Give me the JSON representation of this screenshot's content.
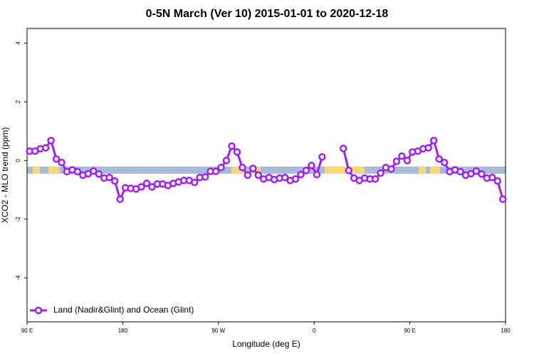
{
  "chart_data": {
    "type": "line",
    "title": "0-5N March (Ver 10)   2015-01-01 to 2020-12-18",
    "x_label": "Longitude (deg E)",
    "y_label": "XCO2 - MLO trend (ppm)",
    "xlim": [
      90,
      540
    ],
    "xticks": [
      {
        "value": 90,
        "label": "90 E"
      },
      180,
      {
        "value": 270,
        "label": "90 W"
      },
      {
        "value": 360,
        "label": "0"
      },
      {
        "value": 450,
        "label": "90 E"
      },
      {
        "value": 540,
        "label": "180"
      }
    ],
    "ylim": [
      -5.5,
      4.5
    ],
    "yticks": [
      4,
      2,
      0,
      -2,
      -4
    ],
    "legend": "bottom-left",
    "x": [
      92.5,
      97.5,
      102.5,
      107.5,
      112.5,
      117.5,
      122.5,
      127.5,
      132.5,
      137.5,
      142.5,
      147.5,
      152.5,
      157.5,
      162.5,
      167.5,
      172.5,
      177.5,
      182.5,
      187.5,
      192.5,
      197.5,
      202.5,
      207.5,
      212.5,
      217.5,
      222.5,
      227.5,
      232.5,
      237.5,
      242.5,
      247.5,
      252.5,
      257.5,
      262.5,
      267.5,
      272.5,
      277.5,
      282.5,
      287.5,
      292.5,
      297.5,
      302.5,
      307.5,
      312.5,
      317.5,
      322.5,
      327.5,
      332.5,
      337.5,
      342.5,
      347.5,
      352.5,
      357.5,
      362.5,
      367.5,
      372.5,
      377.5,
      382.5,
      387.5,
      392.5,
      397.5,
      402.5,
      407.5,
      412.5,
      417.5,
      422.5,
      427.5,
      432.5,
      437.5,
      442.5,
      447.5,
      452.5,
      457.5,
      462.5,
      467.5,
      472.5,
      477.5,
      482.5,
      487.5,
      492.5,
      497.5,
      502.5,
      507.5,
      512.5,
      517.5,
      522.5,
      527.5,
      532.5,
      537.5
    ],
    "series": [
      {
        "name": "Land (Nadir&Glint) and Ocean (Glint)",
        "color": "#a020f0",
        "values": [
          0.32,
          0.32,
          0.4,
          0.43,
          0.68,
          0.05,
          -0.07,
          -0.38,
          -0.32,
          -0.38,
          -0.5,
          -0.45,
          -0.36,
          -0.46,
          -0.6,
          -0.58,
          -0.7,
          -1.32,
          -0.93,
          -0.95,
          -0.97,
          -0.9,
          -0.78,
          -0.9,
          -0.8,
          -0.8,
          -0.85,
          -0.78,
          -0.73,
          -0.68,
          -0.68,
          -0.75,
          -0.58,
          -0.56,
          -0.37,
          -0.37,
          -0.24,
          0.0,
          0.49,
          0.29,
          -0.24,
          -0.5,
          -0.27,
          -0.5,
          -0.63,
          -0.58,
          -0.65,
          -0.6,
          -0.58,
          -0.68,
          -0.63,
          -0.48,
          -0.34,
          -0.17,
          -0.48,
          0.12,
          null,
          null,
          null,
          0.41,
          -0.34,
          -0.6,
          -0.68,
          -0.6,
          -0.63,
          -0.63,
          -0.43,
          -0.24,
          -0.29,
          -0.03,
          0.15,
          0.0,
          0.29,
          0.32,
          0.4,
          0.43,
          0.68,
          0.05,
          -0.07,
          -0.38,
          -0.32,
          -0.38,
          -0.5,
          -0.45,
          -0.36,
          -0.46,
          -0.6,
          -0.58,
          -0.7,
          -1.32
        ]
      }
    ]
  }
}
